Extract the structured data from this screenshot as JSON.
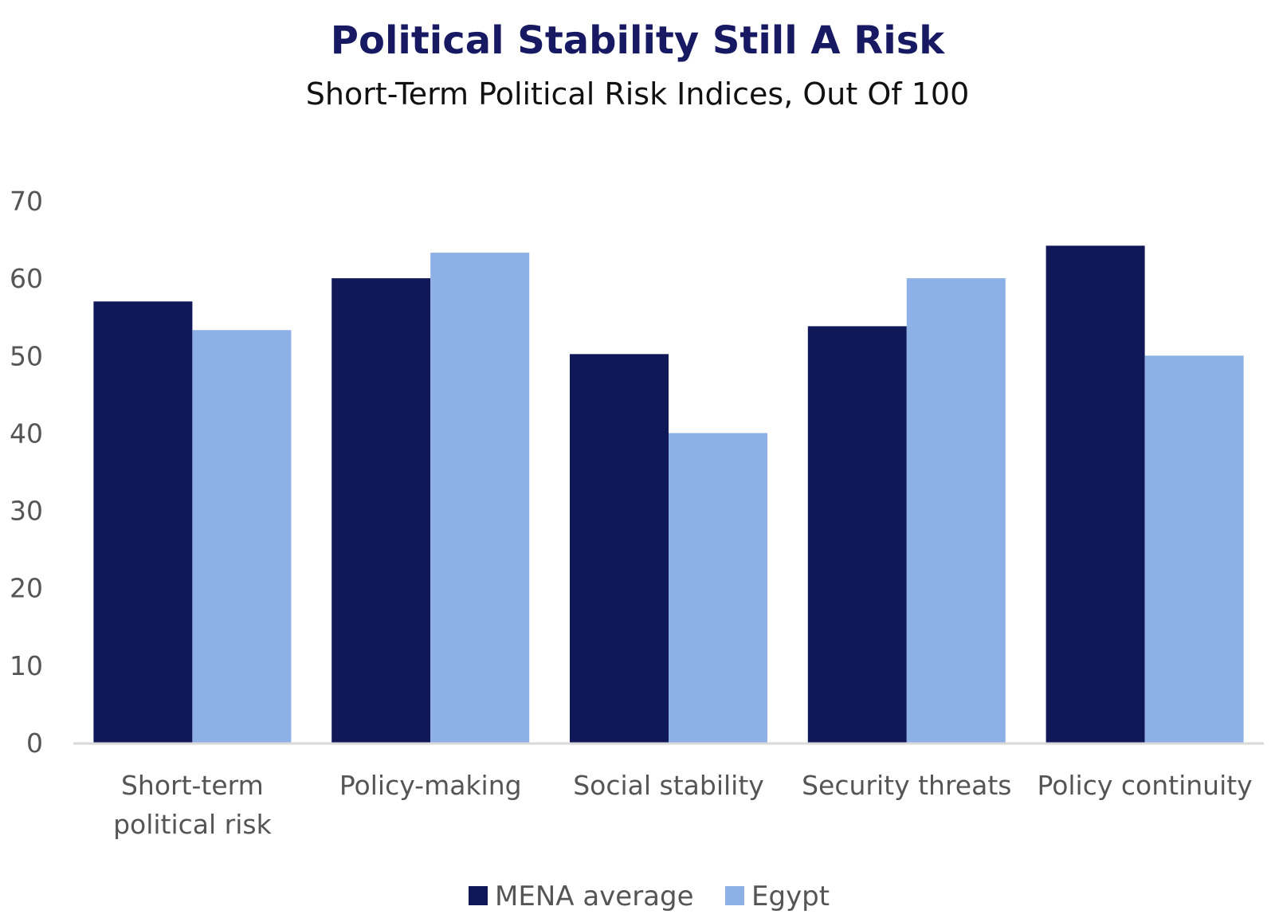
{
  "chart_data": {
    "type": "bar",
    "title": "Political Stability Still A Risk",
    "subtitle": "Short-Term Political Risk Indices, Out Of 100",
    "categories": [
      [
        "Short-term",
        "political risk"
      ],
      [
        "Policy-making"
      ],
      [
        "Social stability"
      ],
      [
        "Security threats"
      ],
      [
        "Policy continuity"
      ]
    ],
    "series": [
      {
        "name": "MENA average",
        "color": "#11185a",
        "values": [
          57.0,
          60.0,
          50.2,
          53.8,
          64.2
        ]
      },
      {
        "name": "Egypt",
        "color": "#8db1e6",
        "values": [
          53.3,
          63.3,
          40.0,
          60.0,
          50.0
        ]
      }
    ],
    "ylim": [
      0,
      70
    ],
    "yticks": [
      "0",
      "10",
      "20",
      "30",
      "40",
      "50",
      "60",
      "70"
    ],
    "xlabel": "",
    "ylabel": "",
    "grid": false,
    "legend_position": "bottom-center",
    "colors": {
      "title": "#171a63",
      "axis": "#d9d9d9"
    }
  }
}
